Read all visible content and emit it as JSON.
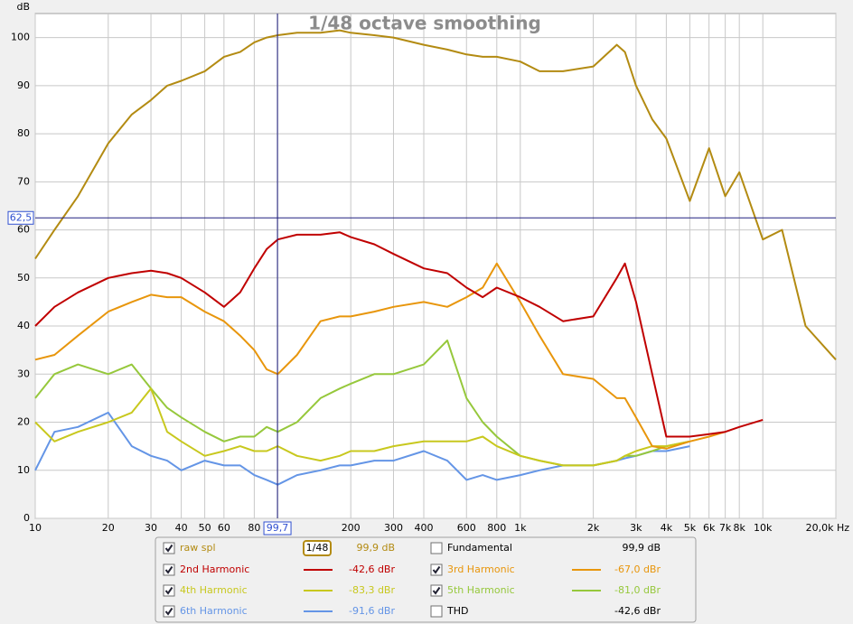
{
  "chart_data": {
    "type": "line",
    "title": "1/48 octave smoothing",
    "y_label": "dB",
    "smoothing_label": "1/48",
    "log_x": true,
    "grid": true,
    "xlim": [
      10,
      20000
    ],
    "ylim": [
      0,
      105
    ],
    "xticks": [
      10,
      20,
      30,
      40,
      50,
      60,
      80,
      100,
      200,
      300,
      400,
      600,
      800,
      {
        "value": 1000,
        "label": "1k"
      },
      {
        "value": 2000,
        "label": "2k"
      },
      {
        "value": 3000,
        "label": "3k"
      },
      {
        "value": 4000,
        "label": "4k"
      },
      {
        "value": 5000,
        "label": "5k"
      },
      {
        "value": 6000,
        "label": "6k"
      },
      {
        "value": 7000,
        "label": "7k"
      },
      {
        "value": 8000,
        "label": "8k"
      },
      {
        "value": 10000,
        "label": "10k"
      },
      {
        "value": 20000,
        "label": "20,0k Hz"
      }
    ],
    "yticks": [
      0,
      10,
      20,
      30,
      40,
      50,
      60,
      70,
      80,
      90,
      100
    ],
    "cursor": {
      "x": {
        "value": 99.7,
        "label": "99,7"
      },
      "y": {
        "value": 62.5,
        "label": "62,5"
      },
      "color": "#202080"
    },
    "x": [
      10,
      12,
      15,
      20,
      25,
      30,
      35,
      40,
      50,
      60,
      70,
      80,
      90,
      100,
      120,
      150,
      180,
      200,
      250,
      300,
      400,
      500,
      600,
      700,
      800,
      1000,
      1200,
      1500,
      2000,
      2500,
      2700,
      3000,
      3500,
      4000,
      5000,
      6000,
      7000,
      8000,
      10000,
      12000,
      15000,
      20000
    ],
    "series": [
      {
        "name": "raw spl",
        "color": "#b38b12",
        "checked": true,
        "reading": "99,9 dB",
        "values": [
          54,
          60,
          67,
          78,
          84,
          87,
          90,
          91,
          93,
          96,
          97,
          99,
          100,
          100.5,
          101,
          101,
          101.5,
          101,
          100.5,
          100,
          98.5,
          97.5,
          96.5,
          96,
          96,
          95,
          93,
          93,
          94,
          98.5,
          97,
          90,
          83,
          79,
          66,
          77,
          67,
          72,
          58,
          60,
          40,
          33
        ]
      },
      {
        "name": "2nd Harmonic",
        "color": "#c00000",
        "checked": true,
        "reading": "-42,6 dBr",
        "values": [
          40,
          44,
          47,
          50,
          51,
          51.5,
          51,
          50,
          47,
          44,
          47,
          52,
          56,
          58,
          59,
          59,
          59.5,
          58.5,
          57,
          55,
          52,
          51,
          48,
          46,
          48,
          46,
          44,
          41,
          42,
          50,
          53,
          45,
          30,
          17,
          17,
          17.5,
          18,
          19,
          20.5,
          null,
          null,
          null
        ]
      },
      {
        "name": "3rd Harmonic",
        "color": "#e8960c",
        "checked": true,
        "reading": "-67,0 dBr",
        "values": [
          33,
          34,
          38,
          43,
          45,
          46.5,
          46,
          46,
          43,
          41,
          38,
          35,
          31,
          30,
          34,
          41,
          42,
          42,
          43,
          44,
          45,
          44,
          46,
          48,
          53,
          45,
          38,
          30,
          29,
          25,
          25,
          21,
          15,
          14.5,
          16,
          17,
          18,
          null,
          null,
          null,
          null,
          null
        ]
      },
      {
        "name": "4th Harmonic",
        "color": "#c8c81e",
        "checked": true,
        "reading": "-83,3 dBr",
        "values": [
          20,
          16,
          18,
          20,
          22,
          27,
          18,
          16,
          13,
          14,
          15,
          14,
          14,
          15,
          13,
          12,
          13,
          14,
          14,
          15,
          16,
          16,
          16,
          17,
          15,
          13,
          12,
          11,
          11,
          12,
          13,
          14,
          15,
          15,
          16,
          null,
          null,
          null,
          null,
          null,
          null,
          null
        ]
      },
      {
        "name": "5th Harmonic",
        "color": "#96c83c",
        "checked": true,
        "reading": "-81,0 dBr",
        "values": [
          25,
          30,
          32,
          30,
          32,
          27,
          23,
          21,
          18,
          16,
          17,
          17,
          19,
          18,
          20,
          25,
          27,
          28,
          30,
          30,
          32,
          37,
          25,
          20,
          17,
          13,
          12,
          11,
          11,
          12,
          13,
          13,
          14,
          15,
          16,
          null,
          null,
          null,
          null,
          null,
          null,
          null
        ]
      },
      {
        "name": "6th Harmonic",
        "color": "#6495e6",
        "checked": true,
        "reading": "-91,6 dBr",
        "values": [
          10,
          18,
          19,
          22,
          15,
          13,
          12,
          10,
          12,
          11,
          11,
          9,
          8,
          7,
          9,
          10,
          11,
          11,
          12,
          12,
          14,
          12,
          8,
          9,
          8,
          9,
          10,
          11,
          11,
          12,
          12.5,
          13,
          14,
          14,
          15,
          null,
          null,
          null,
          null,
          null,
          null,
          null
        ]
      }
    ],
    "other_traces": [
      {
        "name": "Fundamental",
        "checked": false,
        "reading": "99,9 dB"
      },
      {
        "name": "THD",
        "checked": false,
        "reading": "-42,6 dBr"
      }
    ]
  }
}
